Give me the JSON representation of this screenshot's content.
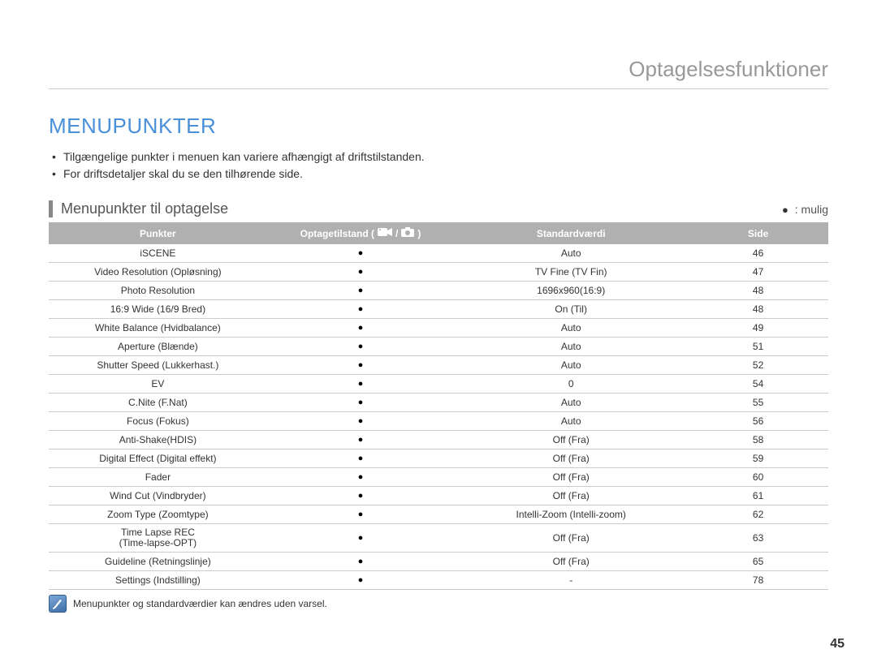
{
  "page": {
    "header": "Optagelsesfunktioner",
    "section_title": "MENUPUNKTER",
    "bullets": [
      "Tilgængelige punkter i menuen kan variere afhængigt af driftstilstanden.",
      "For driftsdetaljer skal du se den tilhørende side."
    ],
    "subheading": "Menupunkter til optagelse",
    "legend_label": ": mulig",
    "page_number": "45",
    "footnote": "Menupunkter og standardværdier kan ændres uden varsel."
  },
  "table": {
    "headers": {
      "punkter": "Punkter",
      "optagetilstand_prefix": "Optagetilstand (",
      "optagetilstand_sep": " / ",
      "optagetilstand_suffix": " )",
      "standard": "Standardværdi",
      "side": "Side"
    },
    "colors": {
      "header_bg": "#b0b0b0",
      "header_text": "#ffffff",
      "row_border": "#cccccc",
      "bullet": "●"
    },
    "rows": [
      {
        "punkter": "iSCENE",
        "mode": "●",
        "standard": "Auto",
        "side": "46"
      },
      {
        "punkter": "Video Resolution (Opløsning)",
        "mode": "●",
        "standard": "TV Fine (TV Fin)",
        "side": "47"
      },
      {
        "punkter": "Photo Resolution",
        "mode": "●",
        "standard": "1696x960(16:9)",
        "side": "48"
      },
      {
        "punkter": "16:9 Wide (16/9 Bred)",
        "mode": "●",
        "standard": "On (Til)",
        "side": "48"
      },
      {
        "punkter": "White Balance (Hvidbalance)",
        "mode": "●",
        "standard": "Auto",
        "side": "49"
      },
      {
        "punkter": "Aperture (Blænde)",
        "mode": "●",
        "standard": "Auto",
        "side": "51"
      },
      {
        "punkter": "Shutter Speed (Lukkerhast.)",
        "mode": "●",
        "standard": "Auto",
        "side": "52"
      },
      {
        "punkter": "EV",
        "mode": "●",
        "standard": "0",
        "side": "54"
      },
      {
        "punkter": "C.Nite (F.Nat)",
        "mode": "●",
        "standard": "Auto",
        "side": "55"
      },
      {
        "punkter": "Focus (Fokus)",
        "mode": "●",
        "standard": "Auto",
        "side": "56"
      },
      {
        "punkter": "Anti-Shake(HDIS)",
        "mode": "●",
        "standard": "Off (Fra)",
        "side": "58"
      },
      {
        "punkter": "Digital Effect (Digital effekt)",
        "mode": "●",
        "standard": "Off (Fra)",
        "side": "59"
      },
      {
        "punkter": "Fader",
        "mode": "●",
        "standard": "Off (Fra)",
        "side": "60"
      },
      {
        "punkter": "Wind Cut (Vindbryder)",
        "mode": "●",
        "standard": "Off (Fra)",
        "side": "61"
      },
      {
        "punkter": "Zoom Type (Zoomtype)",
        "mode": "●",
        "standard": "Intelli-Zoom (Intelli-zoom)",
        "side": "62"
      },
      {
        "punkter": "Time Lapse REC\n(Time-lapse-OPT)",
        "mode": "●",
        "standard": "Off (Fra)",
        "side": "63"
      },
      {
        "punkter": "Guideline (Retningslinje)",
        "mode": "●",
        "standard": "Off (Fra)",
        "side": "65"
      },
      {
        "punkter": "Settings (Indstilling)",
        "mode": "●",
        "standard": "-",
        "side": "78"
      }
    ]
  }
}
